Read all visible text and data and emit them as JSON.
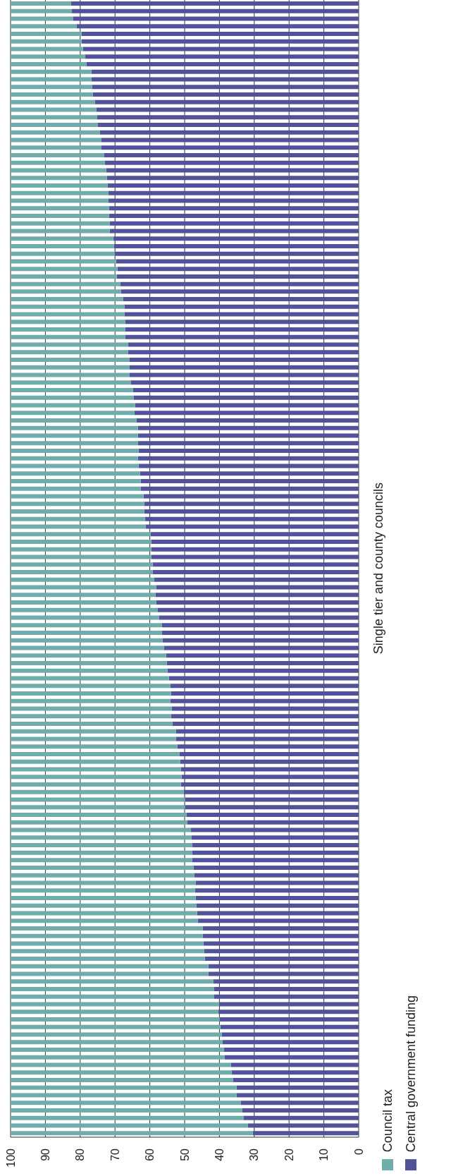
{
  "chart_data": {
    "type": "bar",
    "orientation": "horizontal",
    "stacked": true,
    "ylabel": "Single tier and county councils",
    "categories": [
      null,
      null,
      null,
      null,
      null,
      null,
      null,
      null,
      null,
      null,
      null,
      null,
      null,
      null,
      null,
      null,
      null,
      null,
      null,
      null,
      null,
      null,
      null,
      null,
      null,
      null,
      null,
      null,
      null,
      null,
      null,
      null,
      null,
      null,
      null,
      null,
      null,
      null,
      null,
      null,
      null,
      null,
      null,
      null,
      null,
      null,
      null,
      null,
      null,
      null,
      null,
      null,
      null,
      null,
      null,
      null,
      null,
      null,
      null,
      null,
      null,
      null,
      null,
      null,
      null,
      null,
      null,
      null,
      null,
      null,
      null,
      null,
      null,
      null,
      null,
      null,
      null,
      null,
      null,
      null,
      null,
      null,
      null,
      null,
      null,
      null,
      null,
      null,
      null,
      null,
      null,
      null,
      null,
      null,
      null,
      null,
      null,
      null,
      null,
      null,
      null,
      null,
      null,
      null,
      null,
      null,
      null,
      null,
      null,
      null,
      null,
      null,
      null,
      null,
      null,
      null,
      null,
      null,
      null,
      null,
      null,
      null,
      null,
      null,
      null,
      null,
      null,
      null,
      null,
      null,
      null,
      null,
      null,
      null,
      null,
      null,
      null,
      null,
      null,
      null,
      null,
      null,
      null,
      null,
      null,
      null,
      null,
      null,
      null,
      null
    ],
    "series": [
      {
        "name": "Central government funding",
        "color": "#52529a",
        "values": [
          82.7,
          82.5,
          82.1,
          81.0,
          79.6,
          79.6,
          79.2,
          78.6,
          78.2,
          76.8,
          76.8,
          76.6,
          76.4,
          75.8,
          75.4,
          75.2,
          75.0,
          74.4,
          74.0,
          74.0,
          73.1,
          72.9,
          72.5,
          72.3,
          72.1,
          71.9,
          71.9,
          71.7,
          71.7,
          71.5,
          71.5,
          70.5,
          70.3,
          70.1,
          69.7,
          69.3,
          69.5,
          68.5,
          68.3,
          67.7,
          67.3,
          67.3,
          67.1,
          67.1,
          67.1,
          66.3,
          66.3,
          65.9,
          65.9,
          65.9,
          65.5,
          64.8,
          64.6,
          64.2,
          64.4,
          63.8,
          63.4,
          63.4,
          63.4,
          63.2,
          63.4,
          63.2,
          62.8,
          62.6,
          62.6,
          61.8,
          61.6,
          61.6,
          61.4,
          61.2,
          59.8,
          59.6,
          59.6,
          59.6,
          59.2,
          59.2,
          58.8,
          58.2,
          58.4,
          58.2,
          57.8,
          57.4,
          56.5,
          56.5,
          56.3,
          55.9,
          55.3,
          55.1,
          54.9,
          54.5,
          54.1,
          53.9,
          54.1,
          53.7,
          53.9,
          53.5,
          52.5,
          52.5,
          52.1,
          51.5,
          51.3,
          51.1,
          50.9,
          51.1,
          50.3,
          49.9,
          49.9,
          49.5,
          49.3,
          48.2,
          48.0,
          47.8,
          47.8,
          47.8,
          47.4,
          47.2,
          46.8,
          47.0,
          46.8,
          46.6,
          46.4,
          46.2,
          44.8,
          44.8,
          44.6,
          44.4,
          44.2,
          43.2,
          43.2,
          41.8,
          41.5,
          41.5,
          40.1,
          40.3,
          39.9,
          39.7,
          39.3,
          39.1,
          38.7,
          38.5,
          36.7,
          36.5,
          36.1,
          35.1,
          35.1,
          33.8,
          33.4,
          33.0,
          31.8,
          30.4
        ]
      },
      {
        "name": "Council tax",
        "color": "#6fadab",
        "values": [
          17.3,
          17.5,
          17.9,
          19.0,
          20.4,
          20.4,
          20.8,
          21.4,
          21.8,
          23.2,
          23.2,
          23.4,
          23.6,
          24.2,
          24.6,
          24.8,
          25.0,
          25.6,
          26.0,
          26.0,
          26.9,
          27.1,
          27.5,
          27.7,
          27.9,
          28.1,
          28.1,
          28.3,
          28.3,
          28.5,
          28.5,
          29.5,
          29.7,
          29.9,
          30.3,
          30.7,
          30.5,
          31.5,
          31.7,
          32.3,
          32.7,
          32.7,
          32.9,
          32.9,
          32.9,
          33.7,
          33.7,
          34.1,
          34.1,
          34.1,
          34.5,
          35.2,
          35.4,
          35.8,
          35.6,
          36.2,
          36.6,
          36.6,
          36.6,
          36.8,
          36.6,
          36.8,
          37.2,
          37.4,
          37.4,
          38.2,
          38.4,
          38.4,
          38.6,
          38.8,
          40.2,
          40.4,
          40.4,
          40.4,
          40.8,
          40.8,
          41.2,
          41.8,
          41.6,
          41.8,
          42.2,
          42.6,
          43.5,
          43.5,
          43.7,
          44.1,
          44.7,
          44.9,
          45.1,
          45.5,
          45.9,
          46.1,
          45.9,
          46.3,
          46.1,
          46.5,
          47.5,
          47.5,
          47.9,
          48.5,
          48.7,
          48.9,
          49.1,
          48.9,
          49.7,
          50.1,
          50.1,
          50.5,
          50.7,
          51.8,
          52.0,
          52.2,
          52.2,
          52.2,
          52.6,
          52.8,
          53.2,
          53.0,
          53.2,
          53.4,
          53.6,
          53.8,
          55.2,
          55.2,
          55.4,
          55.6,
          55.8,
          56.8,
          56.8,
          58.2,
          58.5,
          58.5,
          59.9,
          59.7,
          60.1,
          60.3,
          60.7,
          60.9,
          61.3,
          61.5,
          63.3,
          63.5,
          63.9,
          64.9,
          64.9,
          66.2,
          66.6,
          67.0,
          68.2,
          69.6
        ]
      }
    ],
    "xlim": [
      100,
      0
    ],
    "xticks": [
      100,
      90,
      80,
      70,
      60,
      50,
      40,
      30,
      20,
      10,
      0
    ],
    "grid": "x",
    "legend": "bottom right",
    "tick_labels": "x"
  }
}
